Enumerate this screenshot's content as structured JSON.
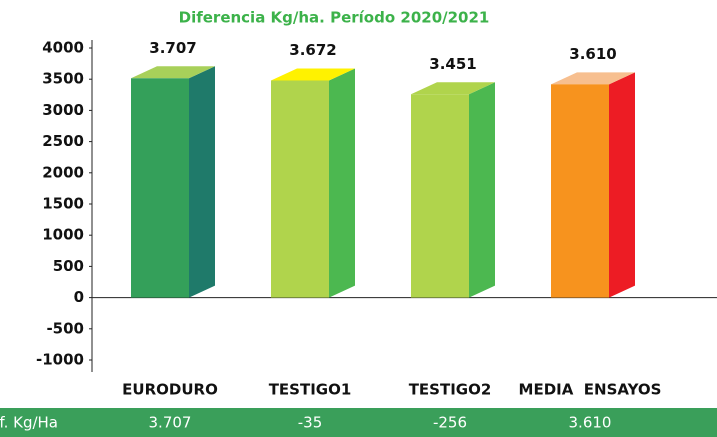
{
  "chart_data": {
    "type": "bar3d",
    "title": "Diferencia Kg/ha. Período 2020/2021",
    "categories": [
      "EURODURO",
      "TESTIGO1",
      "TESTIGO2",
      "MEDIA  ENSAYOS"
    ],
    "values": [
      3707,
      3672,
      3451,
      3610
    ],
    "value_labels": [
      "3.707",
      "3.672",
      "3.451",
      "3.610"
    ],
    "colors": [
      "#34a05a",
      "#b0d44c",
      "#b0d44c",
      "#f7931e"
    ],
    "side_colors": [
      "#1f7a6a",
      "#4cb850",
      "#4cb850",
      "#ed1c24"
    ],
    "top_colors": [
      "#a8d05a",
      "#fff200",
      "#b0d44c",
      "#f7bf8f"
    ],
    "ylim": [
      -1000,
      4000
    ],
    "yticks": [
      4000,
      3500,
      3000,
      2500,
      2000,
      1500,
      1000,
      500,
      0,
      -500,
      -1000
    ]
  },
  "table": {
    "row_label": "Dif. Kg/Ha",
    "cells": [
      "3.707",
      "-35",
      "-256",
      "3.610"
    ]
  }
}
